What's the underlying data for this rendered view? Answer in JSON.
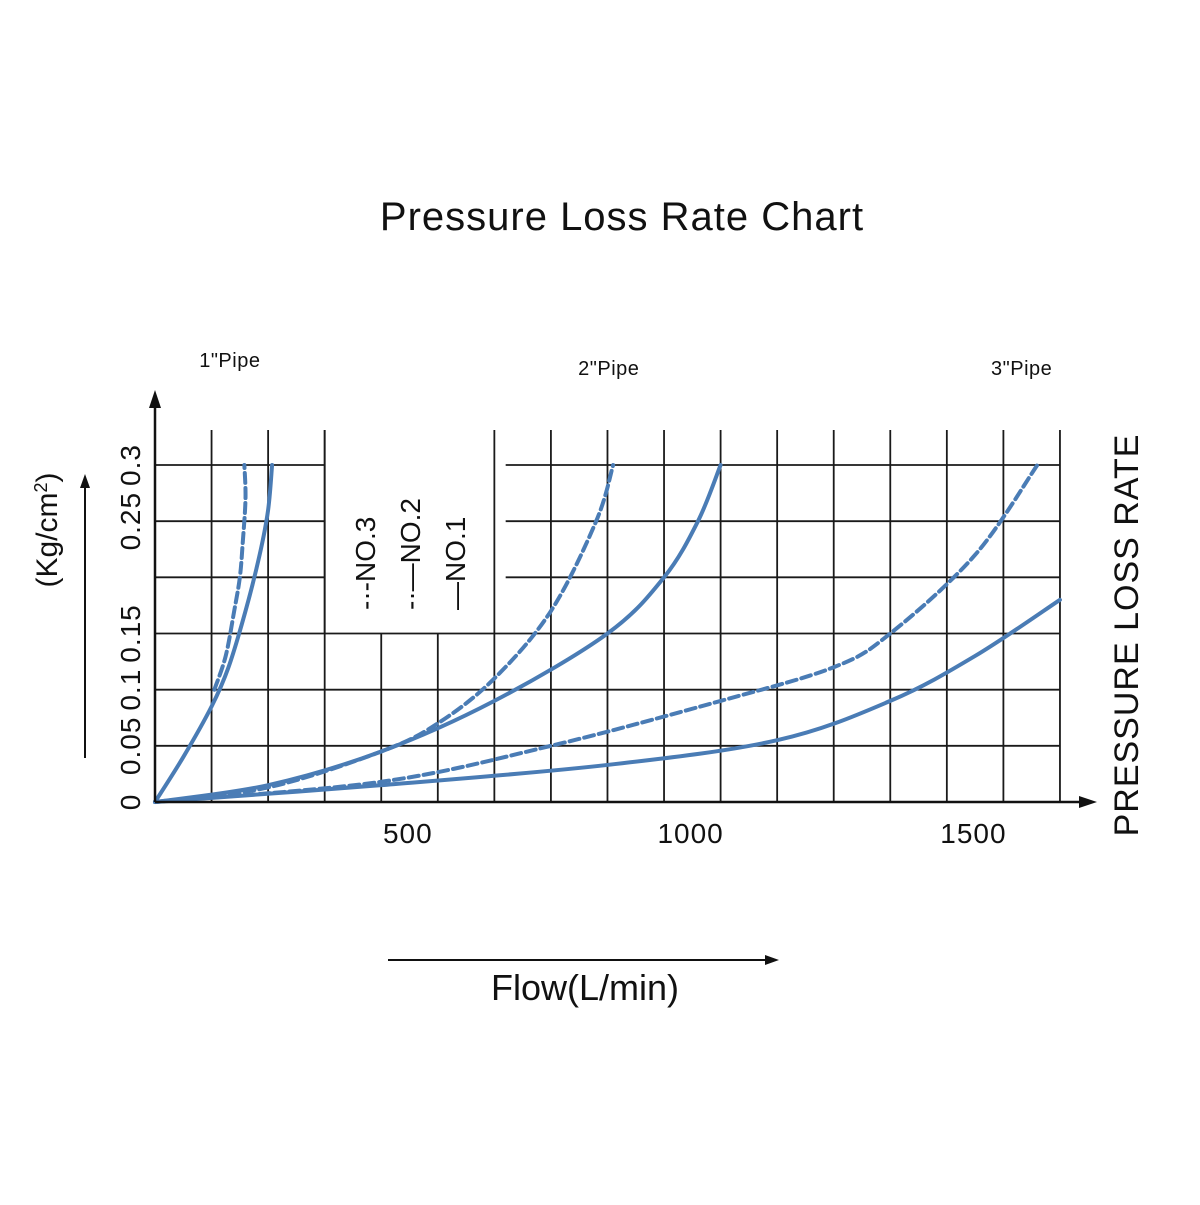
{
  "chart_data": {
    "type": "line",
    "title": "Pressure Loss Rate Chart",
    "xlabel": "Flow(L/min)",
    "ylabel": "(Kg/cm",
    "ylabel_sup": "2",
    "ylabel_close": ")",
    "right_label": "PRESSURE LOSS RATE",
    "xlim": [
      0,
      1600
    ],
    "ylim": [
      0,
      0.3
    ],
    "x_ticks": [
      {
        "value": 500,
        "label": "500"
      },
      {
        "value": 1000,
        "label": "1000"
      },
      {
        "value": 1500,
        "label": "1500"
      }
    ],
    "y_ticks": [
      {
        "value": 0,
        "label": "0"
      },
      {
        "value": 0.05,
        "label": "0.05"
      },
      {
        "value": 0.1,
        "label": "0.1"
      },
      {
        "value": 0.15,
        "label": "0.15"
      },
      {
        "value": 0.25,
        "label": "0.25"
      },
      {
        "value": 0.3,
        "label": "0.3"
      }
    ],
    "grid_x_values": [
      100,
      200,
      300,
      400,
      500,
      600,
      700,
      800,
      900,
      1000,
      1100,
      1200,
      1300,
      1400,
      1500
    ],
    "grid_y_values": [
      0.05,
      0.1,
      0.15,
      0.2,
      0.25,
      0.3
    ],
    "pipe_labels": [
      {
        "label": "1\"Pipe",
        "x": 150
      },
      {
        "label": "2\"Pipe",
        "x": 820
      },
      {
        "label": "3\"Pipe",
        "x": 1550
      }
    ],
    "legend": [
      {
        "marker": "-·-",
        "label": "NO.3"
      },
      {
        "marker": "-·—",
        "label": "NO.2"
      },
      {
        "marker": "—",
        "label": "NO.1"
      }
    ],
    "series": [
      {
        "name": "1\" Pipe NO.1",
        "style": "solid",
        "points": [
          [
            0,
            0
          ],
          [
            50,
            0.04
          ],
          [
            100,
            0.085
          ],
          [
            130,
            0.12
          ],
          [
            160,
            0.17
          ],
          [
            185,
            0.22
          ],
          [
            200,
            0.26
          ],
          [
            207,
            0.3
          ]
        ]
      },
      {
        "name": "1\" Pipe NO.2",
        "style": "dashed",
        "points": [
          [
            105,
            0.1
          ],
          [
            125,
            0.13
          ],
          [
            140,
            0.17
          ],
          [
            150,
            0.2
          ],
          [
            155,
            0.23
          ],
          [
            160,
            0.27
          ],
          [
            158,
            0.3
          ]
        ]
      },
      {
        "name": "2\" Pipe NO.1",
        "style": "solid",
        "points": [
          [
            0,
            0
          ],
          [
            200,
            0.015
          ],
          [
            400,
            0.045
          ],
          [
            600,
            0.09
          ],
          [
            800,
            0.15
          ],
          [
            900,
            0.2
          ],
          [
            960,
            0.25
          ],
          [
            1000,
            0.3
          ]
        ]
      },
      {
        "name": "2\" Pipe NO.2",
        "style": "dashed",
        "points": [
          [
            0,
            0
          ],
          [
            200,
            0.013
          ],
          [
            400,
            0.045
          ],
          [
            500,
            0.07
          ],
          [
            600,
            0.11
          ],
          [
            700,
            0.17
          ],
          [
            780,
            0.25
          ],
          [
            810,
            0.3
          ]
        ]
      },
      {
        "name": "3\" Pipe NO.1",
        "style": "solid",
        "points": [
          [
            0,
            0
          ],
          [
            400,
            0.015
          ],
          [
            800,
            0.033
          ],
          [
            1100,
            0.055
          ],
          [
            1300,
            0.09
          ],
          [
            1450,
            0.13
          ],
          [
            1600,
            0.18
          ]
        ]
      },
      {
        "name": "3\" Pipe NO.2",
        "style": "dashed",
        "points": [
          [
            0,
            0
          ],
          [
            400,
            0.018
          ],
          [
            700,
            0.05
          ],
          [
            1000,
            0.09
          ],
          [
            1200,
            0.12
          ],
          [
            1300,
            0.15
          ],
          [
            1450,
            0.22
          ],
          [
            1560,
            0.3
          ]
        ]
      }
    ],
    "colors": {
      "series": "#4a7cb5",
      "grid": "#1a1a1a",
      "text": "#111111"
    }
  }
}
